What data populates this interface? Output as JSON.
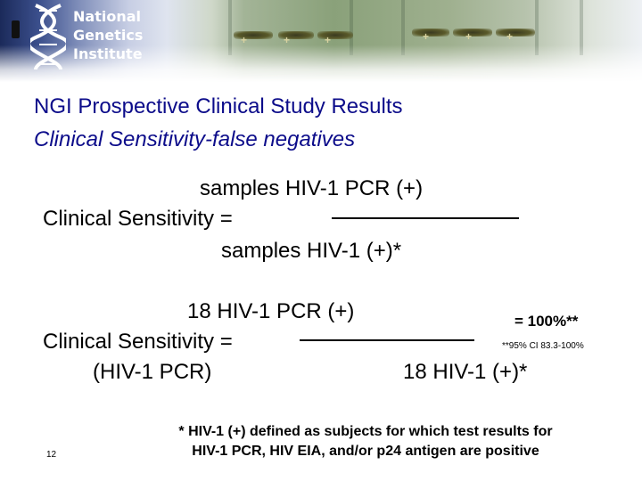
{
  "header": {
    "logo_line1": "National",
    "logo_line2": "Genetics",
    "logo_line3": "Institute",
    "gel_marks": [
      "+",
      "+",
      "+",
      "+",
      "+",
      "+"
    ]
  },
  "title": {
    "line1": "NGI Prospective Clinical Study Results",
    "line2": "Clinical Sensitivity-false negatives"
  },
  "formula1": {
    "numerator": "samples HIV-1 PCR (+)",
    "label": "Clinical Sensitivity =",
    "denominator": "samples HIV-1 (+)*"
  },
  "formula2": {
    "numerator": "18 HIV-1 PCR (+)",
    "label": "Clinical Sensitivity =",
    "sublabel": "(HIV-1 PCR)",
    "denominator": "18 HIV-1 (+)*",
    "result": "= 100%**",
    "ci": "**95% CI 83.3-100%"
  },
  "footnote": {
    "line1": "* HIV-1 (+) defined as subjects for which test results for",
    "line2": "HIV-1 PCR, HIV EIA, and/or p24 antigen are positive"
  },
  "page_number": "12",
  "colors": {
    "title": "#0c0c8a",
    "text": "#000000"
  }
}
